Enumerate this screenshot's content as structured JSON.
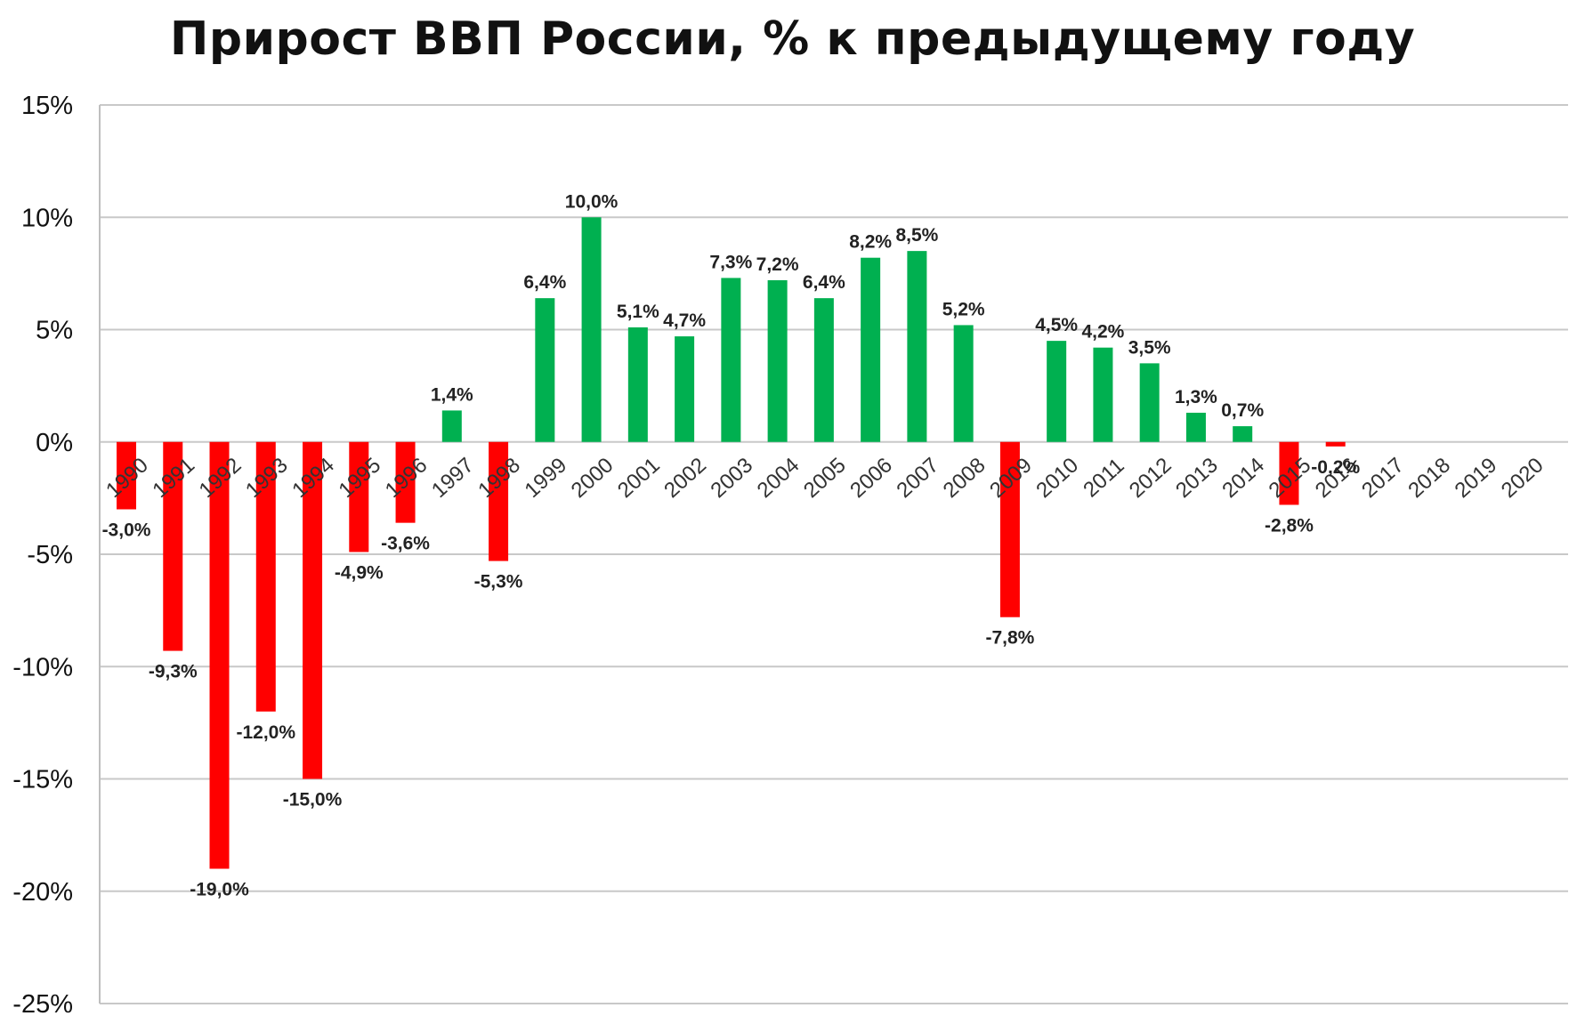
{
  "chart_data": {
    "type": "bar",
    "title": "Прирост ВВП России, % к предыдущему году",
    "xlabel": "",
    "ylabel": "",
    "ylim": [
      -25,
      15
    ],
    "yticks": [
      15,
      10,
      5,
      0,
      -5,
      -10,
      -15,
      -20,
      -25
    ],
    "ytick_labels": [
      "15%",
      "10%",
      "5%",
      "0%",
      "-5%",
      "-10%",
      "-15%",
      "-20%",
      "-25%"
    ],
    "grid": true,
    "legend": "none",
    "categories": [
      "1990",
      "1991",
      "1992",
      "1993",
      "1994",
      "1995",
      "1996",
      "1997",
      "1998",
      "1999",
      "2000",
      "2001",
      "2002",
      "2003",
      "2004",
      "2005",
      "2006",
      "2007",
      "2008",
      "2009",
      "2010",
      "2011",
      "2012",
      "2013",
      "2014",
      "2015",
      "2016",
      "2017",
      "2018",
      "2019",
      "2020"
    ],
    "values": [
      -3.0,
      -9.3,
      -19.0,
      -12.0,
      -15.0,
      -4.9,
      -3.6,
      1.4,
      -5.3,
      6.4,
      10.0,
      5.1,
      4.7,
      7.3,
      7.2,
      6.4,
      8.2,
      8.5,
      5.2,
      -7.8,
      4.5,
      4.2,
      3.5,
      1.3,
      0.7,
      -2.8,
      -0.2,
      null,
      null,
      null,
      null
    ],
    "data_labels": [
      "-3,0%",
      "-9,3%",
      "-19,0%",
      "-12,0%",
      "-15,0%",
      "-4,9%",
      "-3,6%",
      "1,4%",
      "-5,3%",
      "6,4%",
      "10,0%",
      "5,1%",
      "4,7%",
      "7,3%",
      "7,2%",
      "6,4%",
      "8,2%",
      "8,5%",
      "5,2%",
      "-7,8%",
      "4,5%",
      "4,2%",
      "3,5%",
      "1,3%",
      "0,7%",
      "-2,8%",
      "-0,2%",
      "",
      "",
      "",
      ""
    ],
    "colors": {
      "positive": "#00b050",
      "negative": "#ff0000",
      "grid": "#c8c8c8",
      "axis": "#bfbfbf"
    }
  }
}
